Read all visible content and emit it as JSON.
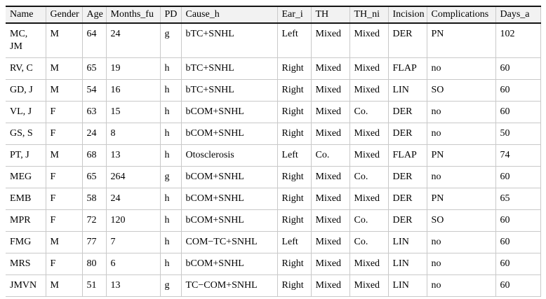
{
  "table": {
    "columns": [
      "Name",
      "Gender",
      "Age",
      "Months_fu",
      "PD",
      "Cause_h",
      "Ear_i",
      "TH",
      "TH_ni",
      "Incision",
      "Complications",
      "Days_a"
    ],
    "rows": [
      [
        "MC, JM",
        "M",
        "64",
        "24",
        "g",
        "bTC+SNHL",
        "Left",
        "Mixed",
        "Mixed",
        "DER",
        "PN",
        "102"
      ],
      [
        "RV, C",
        "M",
        "65",
        "19",
        "h",
        "bTC+SNHL",
        "Right",
        "Mixed",
        "Mixed",
        "FLAP",
        "no",
        "60"
      ],
      [
        "GD, J",
        "M",
        "54",
        "16",
        "h",
        "bTC+SNHL",
        "Right",
        "Mixed",
        "Mixed",
        "LIN",
        "SO",
        "60"
      ],
      [
        "VL, J",
        "F",
        "63",
        "15",
        "h",
        "bCOM+SNHL",
        "Right",
        "Mixed",
        "Co.",
        "DER",
        "no",
        "60"
      ],
      [
        "GS, S",
        "F",
        "24",
        "8",
        "h",
        "bCOM+SNHL",
        "Right",
        "Mixed",
        "Mixed",
        "DER",
        "no",
        "50"
      ],
      [
        "PT, J",
        "M",
        "68",
        "13",
        "h",
        "Otosclerosis",
        "Left",
        "Co.",
        "Mixed",
        "FLAP",
        "PN",
        "74"
      ],
      [
        "MEG",
        "F",
        "65",
        "264",
        "g",
        "bCOM+SNHL",
        "Right",
        "Mixed",
        "Co.",
        "DER",
        "no",
        "60"
      ],
      [
        "EMB",
        "F",
        "58",
        "24",
        "h",
        "bCOM+SNHL",
        "Right",
        "Mixed",
        "Mixed",
        "DER",
        "PN",
        "65"
      ],
      [
        "MPR",
        "F",
        "72",
        "120",
        "h",
        "bCOM+SNHL",
        "Right",
        "Mixed",
        "Co.",
        "DER",
        "SO",
        "60"
      ],
      [
        "FMG",
        "M",
        "77",
        "7",
        "h",
        "COM−TC+SNHL",
        "Left",
        "Mixed",
        "Co.",
        "LIN",
        "no",
        "60"
      ],
      [
        "MRS",
        "F",
        "80",
        "6",
        "h",
        "bCOM+SNHL",
        "Right",
        "Mixed",
        "Mixed",
        "LIN",
        "no",
        "60"
      ],
      [
        "JMVN",
        "M",
        "51",
        "13",
        "g",
        "TC−COM+SNHL",
        "Right",
        "Mixed",
        "Mixed",
        "LIN",
        "no",
        "60"
      ]
    ],
    "borders": {
      "rule_black": "#141414",
      "grid_gray": "#c9c9c9",
      "header_bg": "#f2f2f2"
    }
  }
}
